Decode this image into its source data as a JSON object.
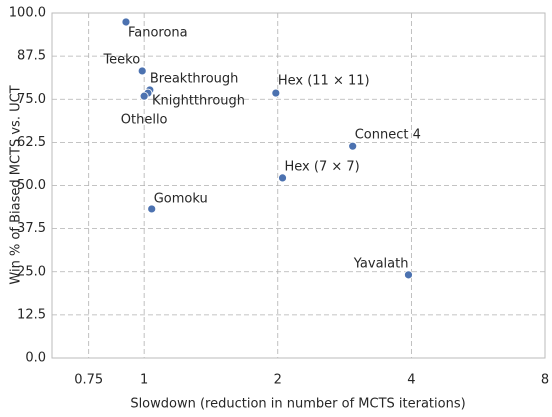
{
  "chart_data": {
    "type": "scatter",
    "xlabel": "Slowdown (reduction in number of MCTS iterations)",
    "ylabel": "Win % of Biased MCTS vs. UCT",
    "labels": [
      "Fanorona",
      "Teeko",
      "Breakthrough",
      "Knightthrough",
      "Othello",
      "Hex (11 × 11)",
      "Connect 4",
      "Hex (7 × 7)",
      "Gomoku",
      "Yavalath"
    ],
    "x": [
      0.91,
      0.99,
      1.03,
      1.02,
      1.0,
      1.98,
      2.95,
      2.05,
      1.04,
      3.94
    ],
    "y": [
      97.4,
      83.2,
      77.7,
      76.8,
      75.9,
      76.8,
      61.4,
      52.2,
      43.2,
      24.1
    ],
    "color": "#4c72b0",
    "xscale": "log",
    "xlim": [
      0.62,
      8
    ],
    "xticks": [
      0.75,
      1,
      2,
      4,
      8
    ],
    "ylim": [
      0,
      100
    ],
    "yticks": [
      {
        "value": 0,
        "label": "0.0"
      },
      12.5,
      {
        "value": 25,
        "label": "25.0"
      },
      37.5,
      {
        "value": 50,
        "label": "50.0"
      },
      62.5,
      {
        "value": 75,
        "label": "75.0"
      },
      87.5,
      {
        "value": 100,
        "label": "100.0"
      }
    ],
    "grid": true
  }
}
